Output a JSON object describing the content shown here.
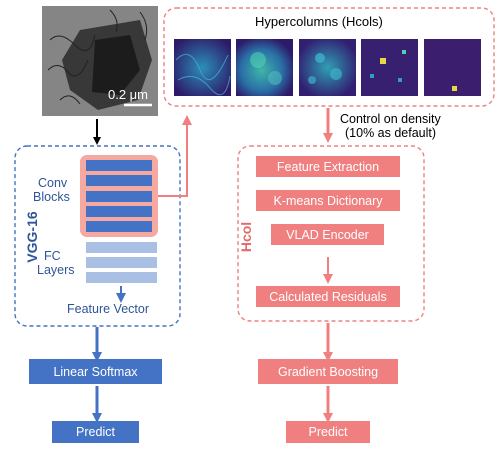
{
  "colors": {
    "blue": "#4472c4",
    "blue_dark": "#2f5597",
    "blue_light": "#a9bfe3",
    "red": "#f08080",
    "red_dark": "#e66a6a",
    "salmon_panel": "#f5a9a0",
    "heatmap_bg": "#3b1f6e"
  },
  "micrograph": {
    "scale_bar_label": "0.2 μm"
  },
  "hypercolumns": {
    "title": "Hypercolumns (Hcols)",
    "density_note_line1": "Control on density",
    "density_note_line2": "(10% as default)"
  },
  "vgg": {
    "label": "VGG-16",
    "conv_label_line1": "Conv",
    "conv_label_line2": "Blocks",
    "fc_label_line1": "FC",
    "fc_label_line2": "Layers",
    "feature_vector": "Feature Vector"
  },
  "left_pipeline": {
    "softmax": "Linear Softmax",
    "predict": "Predict"
  },
  "hcol": {
    "label": "Hcol",
    "steps": [
      "Feature Extraction",
      "K-means Dictionary",
      "VLAD Encoder",
      "Calculated Residuals"
    ],
    "gradient_boosting": "Gradient Boosting",
    "predict": "Predict"
  }
}
